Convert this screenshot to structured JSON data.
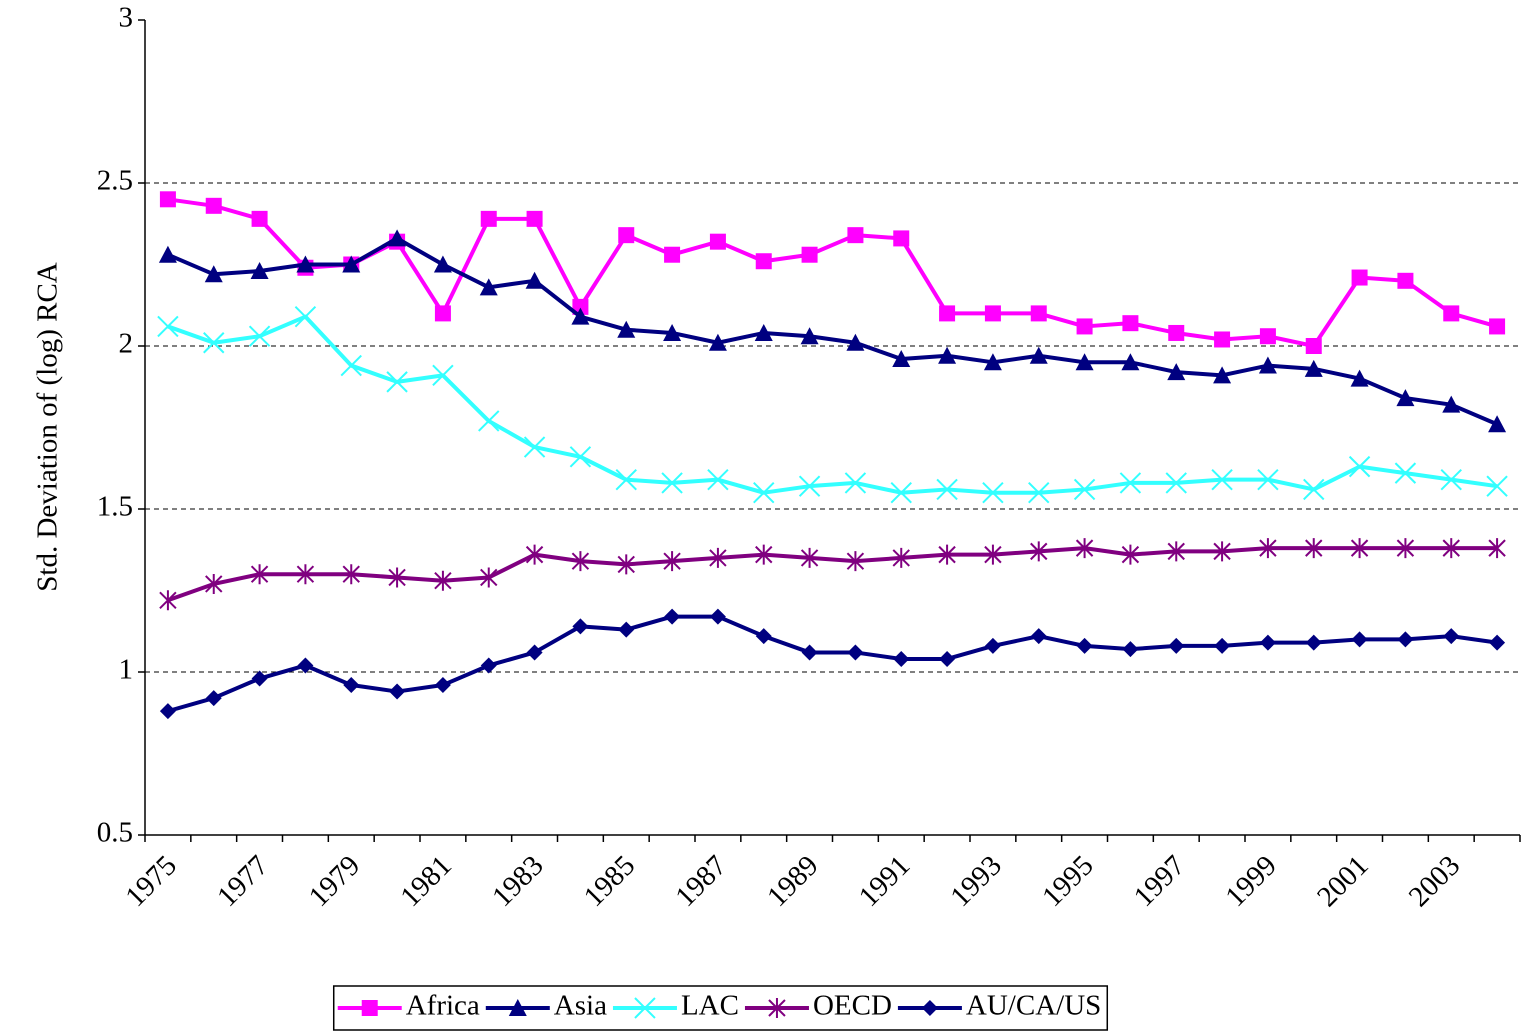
{
  "chart_data": {
    "type": "line",
    "y_label": "Std. Deviation of (log) RCA",
    "categories": [
      "1975",
      null,
      "1977",
      null,
      "1979",
      null,
      "1981",
      null,
      "1983",
      null,
      "1985",
      null,
      "1987",
      null,
      "1989",
      null,
      "1991",
      null,
      "1993",
      null,
      "1995",
      null,
      "1997",
      null,
      "1999",
      null,
      "2001",
      null,
      "2003",
      null
    ],
    "series": [
      {
        "name": "Africa",
        "color": "#ff00ff",
        "marker": "square",
        "values": [
          2.45,
          2.43,
          2.39,
          2.24,
          2.25,
          2.32,
          2.1,
          2.39,
          2.39,
          2.12,
          2.34,
          2.28,
          2.32,
          2.26,
          2.28,
          2.34,
          2.33,
          2.1,
          2.1,
          2.1,
          2.06,
          2.07,
          2.04,
          2.02,
          2.03,
          2.0,
          2.21,
          2.2,
          2.1,
          2.06
        ]
      },
      {
        "name": "Asia",
        "color": "#000080",
        "marker": "triangle",
        "values": [
          2.28,
          2.22,
          2.23,
          2.25,
          2.25,
          2.33,
          2.25,
          2.18,
          2.2,
          2.09,
          2.05,
          2.04,
          2.01,
          2.04,
          2.03,
          2.01,
          1.96,
          1.97,
          1.95,
          1.97,
          1.95,
          1.95,
          1.92,
          1.91,
          1.94,
          1.93,
          1.9,
          1.84,
          1.82,
          1.76
        ]
      },
      {
        "name": "LAC",
        "color": "#33ffff",
        "marker": "x",
        "values": [
          2.06,
          2.01,
          2.03,
          2.09,
          1.94,
          1.89,
          1.91,
          1.77,
          1.69,
          1.66,
          1.59,
          1.58,
          1.59,
          1.55,
          1.57,
          1.58,
          1.55,
          1.56,
          1.55,
          1.55,
          1.56,
          1.58,
          1.58,
          1.59,
          1.59,
          1.56,
          1.63,
          1.61,
          1.59,
          1.57
        ]
      },
      {
        "name": "OECD",
        "color": "#800080",
        "marker": "star",
        "values": [
          1.22,
          1.27,
          1.3,
          1.3,
          1.3,
          1.29,
          1.28,
          1.29,
          1.36,
          1.34,
          1.33,
          1.34,
          1.35,
          1.36,
          1.35,
          1.34,
          1.35,
          1.36,
          1.36,
          1.37,
          1.38,
          1.36,
          1.37,
          1.37,
          1.38,
          1.38,
          1.38,
          1.38,
          1.38,
          1.38
        ]
      },
      {
        "name": "AU/CA/US",
        "color": "#000080",
        "marker": "diamond",
        "values": [
          0.88,
          0.92,
          0.98,
          1.02,
          0.96,
          0.94,
          0.96,
          1.02,
          1.06,
          1.14,
          1.13,
          1.17,
          1.17,
          1.11,
          1.06,
          1.06,
          1.04,
          1.04,
          1.08,
          1.11,
          1.08,
          1.07,
          1.08,
          1.08,
          1.09,
          1.09,
          1.1,
          1.1,
          1.11,
          1.09
        ]
      }
    ],
    "ylim": [
      0.5,
      3
    ],
    "yticks": [
      0.5,
      1,
      1.5,
      2,
      2.5,
      3
    ],
    "grid": true,
    "legend": "bottom"
  }
}
